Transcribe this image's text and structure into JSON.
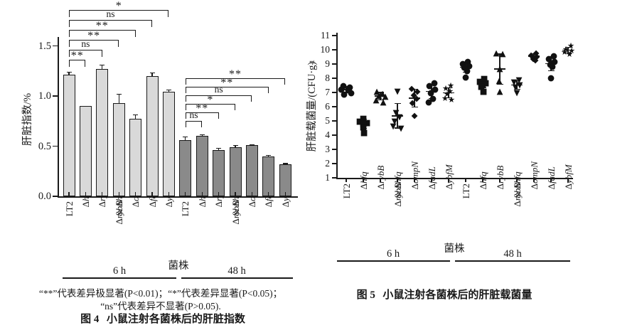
{
  "page": {
    "background": "#ffffff",
    "text_color": "#1a1a1a"
  },
  "figure4": {
    "note_line1": "“**”代表差异极显著(P<0.01)；“*”代表差异显著(P<0.05)；",
    "note_line2": "“ns”代表差异不显著(P>0.05).",
    "fig_label": "图 4",
    "fig_title": "小鼠注射各菌株后的肝脏指数"
  },
  "figure5": {
    "fig_label": "图 5",
    "fig_title": "小鼠注射各菌株后的肝脏载菌量"
  },
  "chart_data": [
    {
      "type": "bar",
      "title": "图 4 小鼠注射各菌株后的肝脏指数",
      "ylabel": "肝脏指数/%",
      "xlabel": "菌株",
      "ylim": [
        0.0,
        1.5
      ],
      "yticks": [
        0.0,
        0.5,
        1.0,
        1.5
      ],
      "grid": false,
      "categories": [
        "LT2",
        "Δhfq",
        "ΔrybB",
        "ΔrybB & Δhfq",
        "ΔompN",
        "ΔfadL",
        "ΔybfM"
      ],
      "groups": [
        "6 h",
        "48 h"
      ],
      "bar_colors": {
        "6 h": "#d9d9d9",
        "48 h": "#8a8a8a"
      },
      "series": [
        {
          "name": "6 h",
          "values": [
            1.21,
            0.9,
            1.27,
            0.93,
            0.77,
            1.2,
            1.04
          ],
          "errors": [
            0.03,
            0.0,
            0.04,
            0.09,
            0.04,
            0.03,
            0.02
          ],
          "color": "#d9d9d9"
        },
        {
          "name": "48 h",
          "values": [
            0.56,
            0.6,
            0.46,
            0.49,
            0.51,
            0.4,
            0.32
          ],
          "errors": [
            0.03,
            0.012,
            0.02,
            0.015,
            0.006,
            0.01,
            0.006
          ],
          "color": "#8a8a8a"
        }
      ],
      "significance": [
        {
          "from": 0,
          "comparisons": [
            {
              "to": 1,
              "label": "**"
            },
            {
              "to": 2,
              "label": "ns"
            },
            {
              "to": 3,
              "label": "**"
            },
            {
              "to": 4,
              "label": "**"
            },
            {
              "to": 5,
              "label": "ns"
            },
            {
              "to": 6,
              "label": "*"
            }
          ]
        },
        {
          "from": 7,
          "comparisons": [
            {
              "to": 8,
              "label": "ns"
            },
            {
              "to": 9,
              "label": "**"
            },
            {
              "to": 10,
              "label": "*"
            },
            {
              "to": 11,
              "label": "ns"
            },
            {
              "to": 12,
              "label": "**"
            },
            {
              "to": 13,
              "label": "**"
            }
          ]
        }
      ]
    },
    {
      "type": "scatter",
      "title": "图 5 小鼠注射各菌株后的肝脏载菌量",
      "ylabel": "肝脏载菌量/(CFU·g⁻¹)",
      "ylabel_parts": [
        "肝脏载菌量/(CFU·g",
        "-1",
        ")"
      ],
      "xlabel": "菌株",
      "ylim": [
        1,
        11
      ],
      "yticks": [
        1,
        2,
        3,
        4,
        5,
        6,
        7,
        8,
        9,
        10,
        11
      ],
      "grid": false,
      "groups": [
        "6 h",
        "48 h"
      ],
      "columns": [
        {
          "group": "6 h",
          "strain": "LT2",
          "marker": "circle",
          "points": [
            [
              7.5,
              -4
            ],
            [
              7.4,
              5
            ],
            [
              7.25,
              -7
            ],
            [
              7.2,
              3
            ],
            [
              7.0,
              7
            ],
            [
              6.9,
              -3
            ]
          ]
        },
        {
          "group": "6 h",
          "strain": "Δhfq",
          "marker": "square",
          "points": [
            [
              5.2,
              0
            ],
            [
              5.0,
              -5
            ],
            [
              4.9,
              5
            ],
            [
              4.85,
              0
            ],
            [
              4.6,
              0
            ],
            [
              4.2,
              1
            ]
          ]
        },
        {
          "group": "6 h",
          "strain": "ΔrybB",
          "marker": "triangle-up",
          "points": [
            [
              7.1,
              -5
            ],
            [
              6.95,
              3
            ],
            [
              6.8,
              -2
            ],
            [
              6.75,
              7
            ],
            [
              6.5,
              -6
            ],
            [
              6.35,
              4
            ]
          ]
        },
        {
          "group": "6 h",
          "strain": "ΔrybB & Δhfq",
          "marker": "triangle-down",
          "points": [
            [
              7.1,
              0
            ],
            [
              5.6,
              -2
            ],
            [
              5.3,
              3
            ],
            [
              5.0,
              -4
            ],
            [
              4.65,
              -6
            ],
            [
              4.5,
              5
            ]
          ]
        },
        {
          "group": "6 h",
          "strain": "ΔompN",
          "marker": "diamond",
          "points": [
            [
              7.3,
              -4
            ],
            [
              7.1,
              4
            ],
            [
              6.85,
              -1
            ],
            [
              6.6,
              3
            ],
            [
              6.3,
              -3
            ],
            [
              5.4,
              0
            ]
          ]
        },
        {
          "group": "6 h",
          "strain": "ΔfadL",
          "marker": "circle",
          "points": [
            [
              7.7,
              4
            ],
            [
              7.5,
              -3
            ],
            [
              7.25,
              5
            ],
            [
              7.0,
              -1
            ],
            [
              6.6,
              2
            ],
            [
              6.35,
              -4
            ]
          ]
        },
        {
          "group": "6 h",
          "strain": "ΔybfM",
          "marker": "star",
          "points": [
            [
              7.5,
              3
            ],
            [
              7.3,
              -4
            ],
            [
              7.1,
              2
            ],
            [
              6.9,
              -2
            ],
            [
              6.6,
              -5
            ],
            [
              6.5,
              4
            ]
          ]
        },
        {
          "group": "48 h",
          "strain": "LT2",
          "marker": "circle",
          "points": [
            [
              9.2,
              3
            ],
            [
              9.05,
              -4
            ],
            [
              8.9,
              5
            ],
            [
              8.8,
              -2
            ],
            [
              8.55,
              2
            ],
            [
              8.1,
              0
            ]
          ]
        },
        {
          "group": "48 h",
          "strain": "Δhfq",
          "marker": "square",
          "points": [
            [
              8.0,
              2
            ],
            [
              7.8,
              -4
            ],
            [
              7.7,
              4
            ],
            [
              7.6,
              0
            ],
            [
              7.45,
              -2
            ],
            [
              7.1,
              1
            ]
          ]
        },
        {
          "group": "48 h",
          "strain": "ΔrybB",
          "marker": "triangle-up",
          "points": [
            [
              9.8,
              -5
            ],
            [
              9.75,
              4
            ],
            [
              8.7,
              0
            ],
            [
              7.85,
              -1
            ],
            [
              7.1,
              0
            ]
          ]
        },
        {
          "group": "48 h",
          "strain": "ΔrybB & Δhfq",
          "marker": "triangle-down",
          "points": [
            [
              7.9,
              3
            ],
            [
              7.75,
              -4
            ],
            [
              7.55,
              4
            ],
            [
              7.4,
              -2
            ],
            [
              7.0,
              0
            ]
          ]
        },
        {
          "group": "48 h",
          "strain": "ΔompN",
          "marker": "diamond",
          "points": [
            [
              9.8,
              3
            ],
            [
              9.65,
              -4
            ],
            [
              9.55,
              4
            ],
            [
              9.4,
              -1
            ],
            [
              9.3,
              2
            ]
          ]
        },
        {
          "group": "48 h",
          "strain": "ΔfadL",
          "marker": "circle",
          "points": [
            [
              9.6,
              4
            ],
            [
              9.4,
              -3
            ],
            [
              9.2,
              5
            ],
            [
              9.0,
              -1
            ],
            [
              8.85,
              2
            ],
            [
              8.05,
              0
            ]
          ]
        },
        {
          "group": "48 h",
          "strain": "ΔybfM",
          "marker": "star",
          "points": [
            [
              10.3,
              4
            ],
            [
              10.05,
              -3
            ],
            [
              9.95,
              5
            ],
            [
              9.85,
              -5
            ],
            [
              9.7,
              2
            ]
          ]
        }
      ]
    }
  ]
}
